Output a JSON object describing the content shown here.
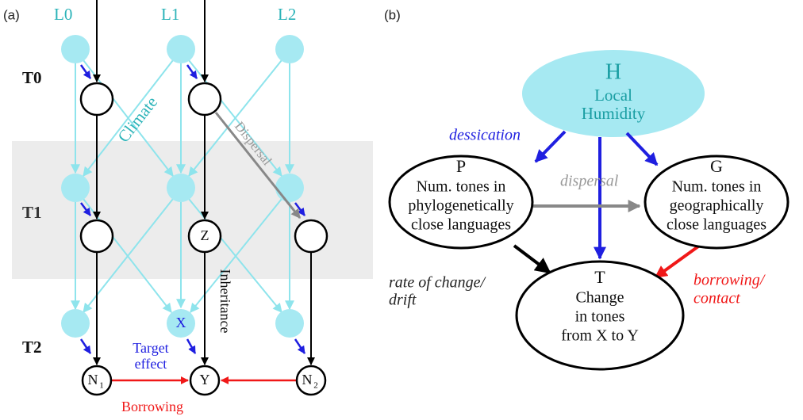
{
  "panel_a": {
    "label": "(a)",
    "columns": [
      "L0",
      "L1",
      "L2"
    ],
    "rows": [
      "T0",
      "T1",
      "T2"
    ],
    "climate": "Climate",
    "dispersal": "Dispersal",
    "inheritance": "Inheritance",
    "nodes": {
      "z": "Z",
      "x": "X",
      "y": "Y",
      "n1": {
        "label": "N",
        "sub": "1"
      },
      "n2": {
        "label": "N",
        "sub": "2"
      }
    },
    "target_effect": [
      "Target",
      "effect"
    ],
    "borrowing": "Borrowing"
  },
  "panel_b": {
    "label": "(b)",
    "h": {
      "letter": "H",
      "lines": [
        "Local",
        "Humidity"
      ]
    },
    "p": {
      "letter": "P",
      "lines": [
        "Num. tones in",
        "phylogenetically",
        "close languages"
      ]
    },
    "g": {
      "letter": "G",
      "lines": [
        "Num. tones in",
        "geographically",
        "close languages"
      ]
    },
    "t": {
      "letter": "T",
      "lines": [
        "Change",
        "in tones",
        "from X to Y"
      ]
    },
    "dessication": "dessication",
    "dispersal": "dispersal",
    "rate": [
      "rate of change/",
      "drift"
    ],
    "borrowing": [
      "borrowing/",
      "contact"
    ]
  }
}
